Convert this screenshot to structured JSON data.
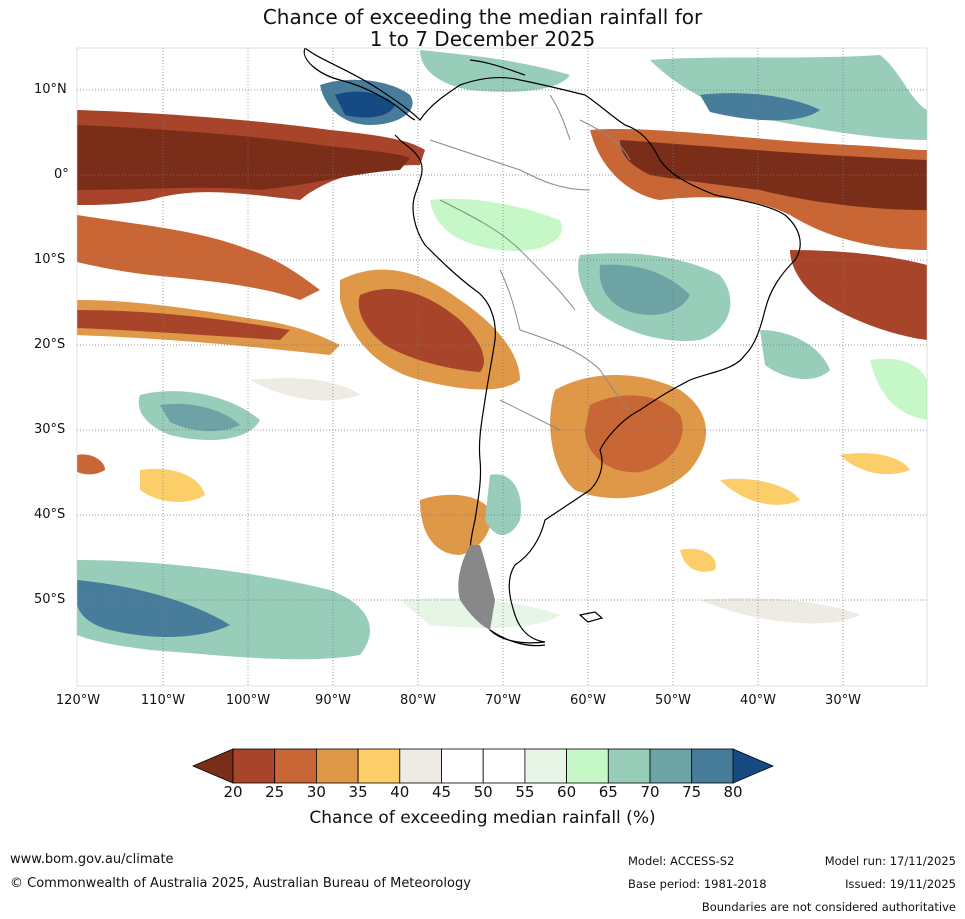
{
  "title_line1": "Chance of exceeding the median rainfall for",
  "title_line2": "1 to 7 December 2025",
  "lat_labels": [
    "10°N",
    "0°",
    "10°S",
    "20°S",
    "30°S",
    "40°S",
    "50°S"
  ],
  "lon_labels": [
    "120°W",
    "110°W",
    "100°W",
    "90°W",
    "80°W",
    "70°W",
    "60°W",
    "50°W",
    "40°W",
    "30°W"
  ],
  "colorbar": {
    "title": "Chance of exceeding median rainfall (%)",
    "ticks": [
      "20",
      "25",
      "30",
      "35",
      "40",
      "45",
      "50",
      "55",
      "60",
      "65",
      "70",
      "75",
      "80"
    ],
    "colors": [
      "#7a2e1a",
      "#a8442a",
      "#c96635",
      "#df9748",
      "#fcce6a",
      "#eeeae4",
      "#ffffff",
      "#ffffff",
      "#e6f5e6",
      "#c5f7c7",
      "#98cdb9",
      "#6ea3a6",
      "#477d9b",
      "#154b82"
    ]
  },
  "footer": {
    "url": "www.bom.gov.au/climate",
    "copyright": "© Commonwealth of Australia 2025, Australian Bureau of Meteorology",
    "model": "Model: ACCESS-S2",
    "base_period": "Base period: 1981-2018",
    "model_run": "Model run: 17/11/2025",
    "issued": "Issued: 19/11/2025",
    "disclaimer": "Boundaries are not considered authoritative"
  }
}
